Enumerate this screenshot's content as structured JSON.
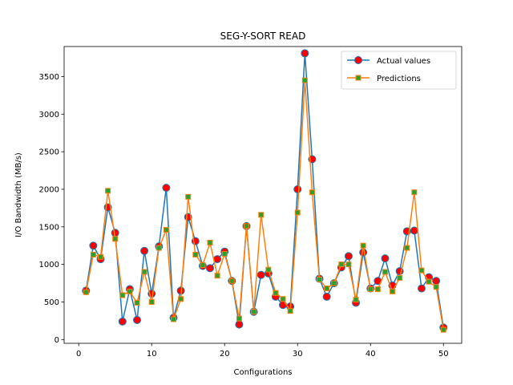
{
  "chart_data": {
    "type": "line",
    "title": "SEG-Y-SORT READ",
    "xlabel": "Configurations",
    "ylabel": "I/O Bandwidth (MB/s)",
    "xlim": [
      -2,
      52.5
    ],
    "ylim": [
      -50,
      3900
    ],
    "xticks": [
      0,
      10,
      20,
      30,
      40,
      50
    ],
    "yticks": [
      0,
      500,
      1000,
      1500,
      2000,
      2500,
      3000,
      3500
    ],
    "legend_position": "top-right",
    "x": [
      1,
      2,
      3,
      4,
      5,
      6,
      7,
      8,
      9,
      10,
      11,
      12,
      13,
      14,
      15,
      16,
      17,
      18,
      19,
      20,
      21,
      22,
      23,
      24,
      25,
      26,
      27,
      28,
      29,
      30,
      31,
      32,
      33,
      34,
      35,
      36,
      37,
      38,
      39,
      40,
      41,
      42,
      43,
      44,
      45,
      46,
      47,
      48,
      49,
      50
    ],
    "series": [
      {
        "name": "Actual values",
        "color": "#1f77b4",
        "marker": "circle",
        "marker_color": "#ff0000",
        "values": [
          650,
          1250,
          1070,
          1760,
          1420,
          240,
          670,
          260,
          1180,
          610,
          1240,
          2020,
          290,
          650,
          1630,
          1310,
          980,
          950,
          1070,
          1170,
          780,
          200,
          1510,
          370,
          860,
          880,
          570,
          460,
          440,
          2000,
          3810,
          2400,
          810,
          570,
          750,
          960,
          1110,
          490,
          1160,
          680,
          780,
          1080,
          720,
          910,
          1440,
          1450,
          680,
          830,
          780,
          160
        ]
      },
      {
        "name": "Predictions",
        "color": "#ff7f0e",
        "marker": "square",
        "marker_color": "#2ca02c",
        "values": [
          630,
          1130,
          1100,
          1980,
          1340,
          590,
          640,
          490,
          900,
          500,
          1220,
          1460,
          270,
          540,
          1900,
          1130,
          990,
          1290,
          850,
          1140,
          780,
          280,
          1510,
          370,
          1660,
          930,
          620,
          540,
          380,
          1690,
          3450,
          1960,
          800,
          680,
          750,
          1000,
          1000,
          530,
          1250,
          670,
          670,
          900,
          640,
          820,
          1220,
          1960,
          920,
          770,
          700,
          130
        ]
      }
    ]
  }
}
